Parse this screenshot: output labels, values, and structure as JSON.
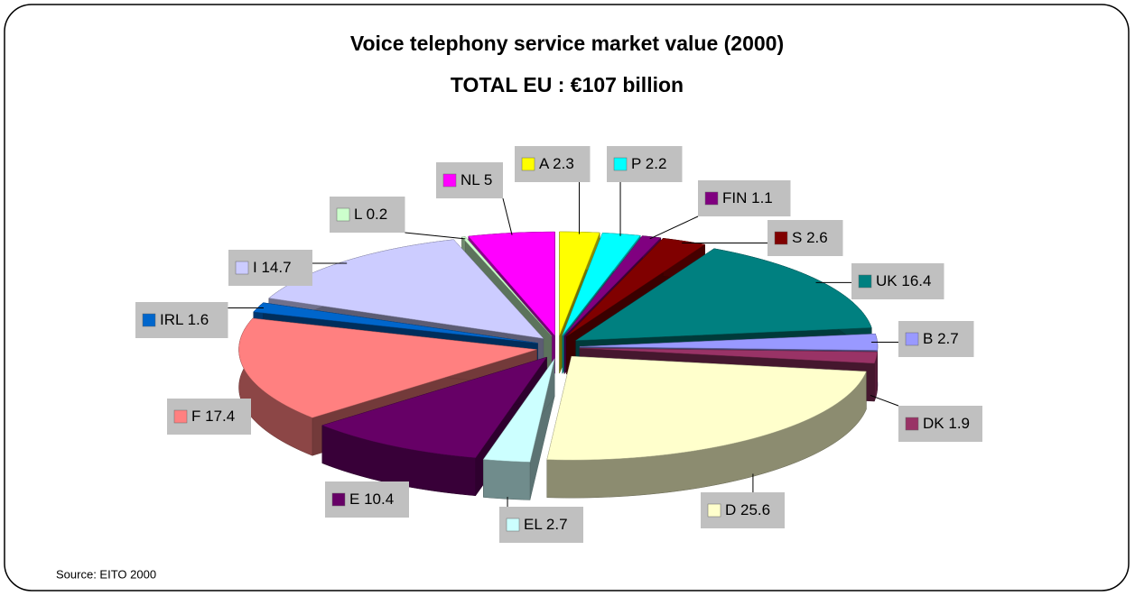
{
  "chart_data": {
    "type": "pie3d",
    "title": "Voice telephony service market value (2000)",
    "subtitle": "TOTAL EU : €107 billion",
    "source": "Source: EITO 2000",
    "categories": [
      "A",
      "P",
      "FIN",
      "S",
      "UK",
      "B",
      "DK",
      "D",
      "EL",
      "E",
      "F",
      "IRL",
      "I",
      "L",
      "NL"
    ],
    "values": [
      2.3,
      2.2,
      1.1,
      2.6,
      16.4,
      2.7,
      1.9,
      25.6,
      2.7,
      10.4,
      17.4,
      1.6,
      14.7,
      0.2,
      5
    ],
    "colors": [
      "#ffff00",
      "#00ffff",
      "#800080",
      "#800000",
      "#008080",
      "#9999ff",
      "#993366",
      "#ffffcc",
      "#ccffff",
      "#660066",
      "#ff8080",
      "#0066cc",
      "#ccccff",
      "#ccffcc",
      "#ff00ff"
    ]
  }
}
